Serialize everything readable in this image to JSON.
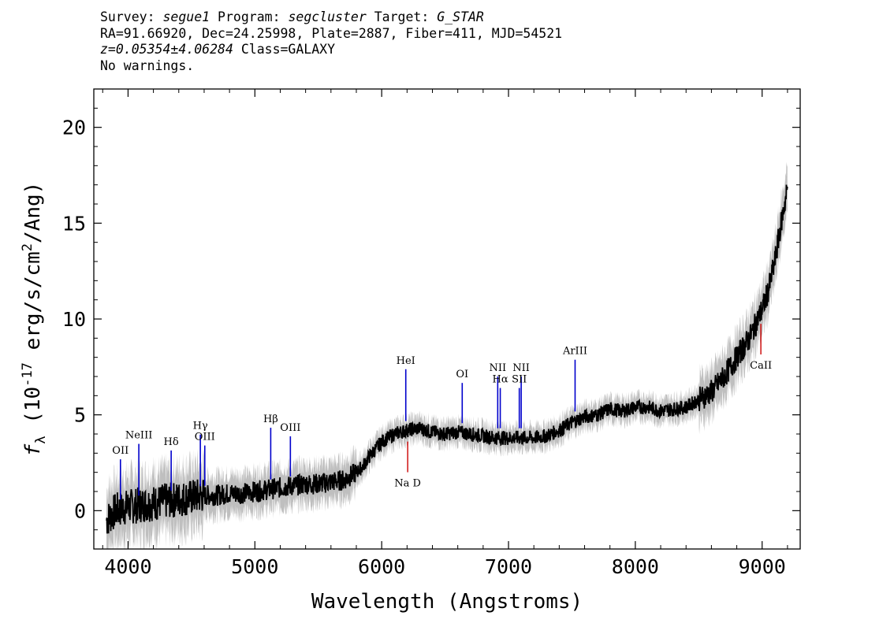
{
  "header": {
    "line1": {
      "survey_label": "Survey:",
      "survey": "segue1",
      "program_label": "Program:",
      "program": "segcluster",
      "target_label": "Target:",
      "target": "G_STAR"
    },
    "line2": "RA=91.66920, Dec=24.25998, Plate=2887, Fiber=411, MJD=54521",
    "line3": {
      "z": "z=0.05354±4.06284",
      "class": "Class=GALAXY"
    },
    "line4": "No warnings."
  },
  "chart_data": {
    "type": "line",
    "xlabel": "Wavelength (Angstroms)",
    "ylabel": "f_λ (10^-17 erg/s/cm^2/Ang)",
    "xlim": [
      3730,
      9300
    ],
    "ylim": [
      -2,
      22
    ],
    "xticks": [
      4000,
      5000,
      6000,
      7000,
      8000,
      9000
    ],
    "yticks": [
      0,
      5,
      10,
      15,
      20
    ],
    "series": [
      {
        "color": "#000000",
        "error_band_color": "#bfbfbf",
        "x": [
          3830,
          3900,
          4000,
          4100,
          4200,
          4300,
          4400,
          4500,
          4600,
          4700,
          4800,
          4900,
          5000,
          5100,
          5200,
          5300,
          5400,
          5500,
          5600,
          5700,
          5800,
          5850,
          5900,
          6000,
          6100,
          6200,
          6300,
          6400,
          6500,
          6600,
          6700,
          6800,
          6900,
          7000,
          7100,
          7200,
          7300,
          7400,
          7500,
          7600,
          7700,
          7800,
          7900,
          8000,
          8100,
          8200,
          8300,
          8400,
          8500,
          8600,
          8700,
          8800,
          8900,
          9000,
          9050,
          9100,
          9150,
          9200
        ],
        "y": [
          -0.5,
          0.0,
          0.2,
          0.3,
          0.4,
          0.5,
          0.6,
          0.7,
          0.8,
          0.8,
          0.9,
          0.9,
          1.0,
          1.1,
          1.2,
          1.3,
          1.4,
          1.4,
          1.5,
          1.6,
          2.0,
          2.3,
          2.8,
          3.6,
          4.0,
          4.2,
          4.3,
          4.1,
          4.0,
          4.1,
          4.0,
          3.9,
          3.8,
          3.8,
          3.8,
          3.8,
          3.9,
          4.2,
          4.6,
          4.9,
          5.0,
          5.3,
          5.2,
          5.4,
          5.4,
          5.2,
          5.3,
          5.4,
          5.8,
          6.2,
          7.0,
          8.0,
          9.0,
          10.5,
          11.5,
          13.0,
          15.0,
          16.8
        ]
      }
    ],
    "emission_lines": [
      {
        "label": "OII",
        "x": 3940,
        "color": "#0000cc"
      },
      {
        "label": "NeIII",
        "x": 4085,
        "color": "#0000cc"
      },
      {
        "label": "Hδ",
        "x": 4340,
        "color": "#0000cc"
      },
      {
        "label": "Hγ",
        "x": 4570,
        "color": "#0000cc"
      },
      {
        "label": "OIII",
        "x": 4605,
        "color": "#0000cc"
      },
      {
        "label": "Hβ",
        "x": 5125,
        "color": "#0000cc"
      },
      {
        "label": "OIII",
        "x": 5280,
        "color": "#0000cc"
      },
      {
        "label": "HeI",
        "x": 6190,
        "color": "#0000cc"
      },
      {
        "label": "OI",
        "x": 6635,
        "color": "#0000cc"
      },
      {
        "label": "NII",
        "x": 6915,
        "color": "#0000cc"
      },
      {
        "label": "Hα",
        "x": 6935,
        "color": "#0000cc"
      },
      {
        "label": "NII",
        "x": 7100,
        "color": "#0000cc"
      },
      {
        "label": "SII",
        "x": 7085,
        "color": "#0000cc"
      },
      {
        "label": "ArIII",
        "x": 7525,
        "color": "#0000cc"
      }
    ],
    "absorption_lines": [
      {
        "label": "Na D",
        "x": 6205,
        "color": "#cc0000"
      },
      {
        "label": "CaII",
        "x": 8990,
        "color": "#cc0000"
      }
    ]
  }
}
